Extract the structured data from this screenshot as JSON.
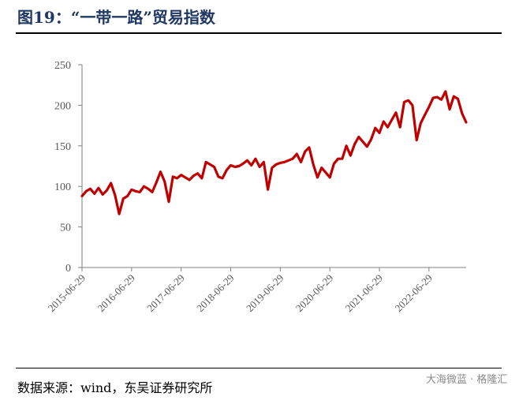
{
  "header": {
    "title": "图19：“一带一路”贸易指数"
  },
  "footer": {
    "source": "数据来源：wind，东吴证券研究所",
    "watermark": "大海微蓝 · 格隆汇"
  },
  "chart_data": {
    "type": "line",
    "title": "",
    "xlabel": "",
    "ylabel": "",
    "ylim": [
      0,
      250
    ],
    "yticks": [
      "0",
      "50",
      "100",
      "150",
      "200",
      "250"
    ],
    "xticks": [
      "2015-06-29",
      "2016-06-29",
      "2017-06-29",
      "2018-06-29",
      "2019-06-29",
      "2020-06-29",
      "2021-06-29",
      "2022-06-29"
    ],
    "grid": false,
    "series_color": "#c00000",
    "series": [
      {
        "values": [
          88,
          94,
          97,
          91,
          98,
          90,
          95,
          104,
          89,
          66,
          85,
          88,
          96,
          94,
          93,
          100,
          97,
          93,
          105,
          118,
          106,
          81,
          112,
          110,
          114,
          111,
          108,
          113,
          116,
          110,
          130,
          127,
          124,
          112,
          110,
          120,
          126,
          124,
          125,
          128,
          132,
          126,
          134,
          124,
          130,
          96,
          123,
          127,
          129,
          130,
          132,
          134,
          140,
          130,
          143,
          148,
          127,
          111,
          123,
          117,
          111,
          128,
          134,
          134,
          150,
          138,
          152,
          161,
          155,
          149,
          158,
          172,
          166,
          180,
          173,
          182,
          191,
          173,
          204,
          206,
          200,
          157,
          178,
          188,
          198,
          209,
          210,
          207,
          217,
          195,
          211,
          208,
          190,
          179
        ]
      }
    ]
  }
}
